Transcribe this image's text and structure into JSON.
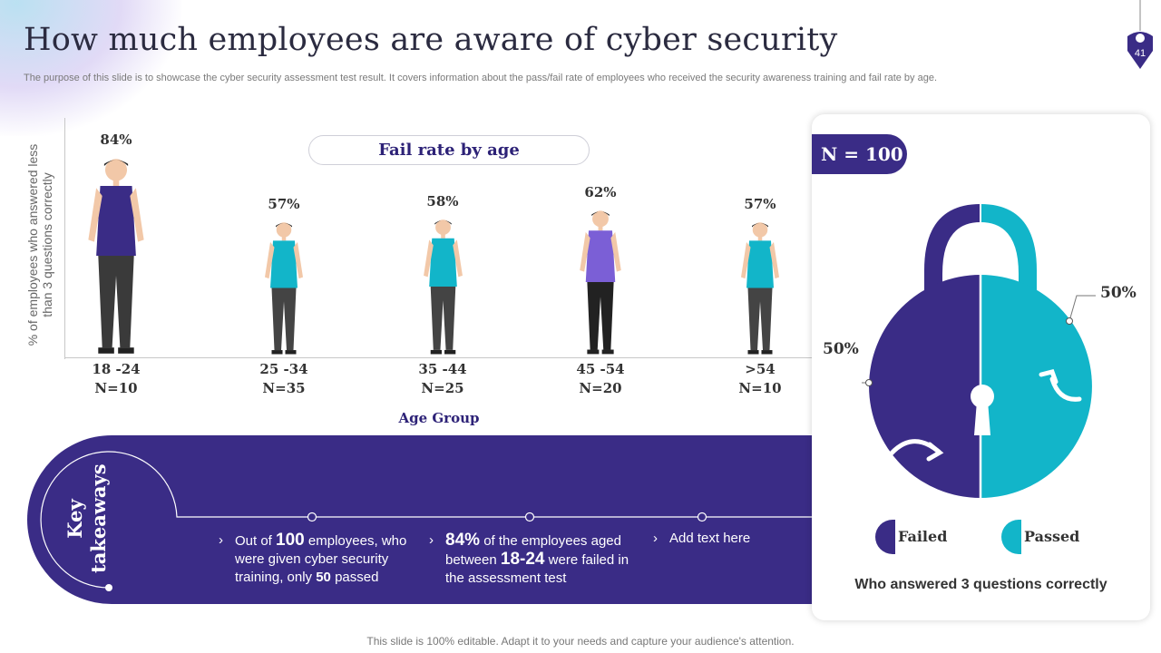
{
  "header": {
    "title": "How much employees are aware of cyber security",
    "subtitle": "The purpose of this slide is to showcase the cyber security assessment test result. It covers information about the pass/fail rate of employees who received the security awareness training and fail rate by age.",
    "page_number": "41"
  },
  "chart_data": [
    {
      "type": "bar",
      "title": "Fail rate by age",
      "xlabel": "Age Group",
      "ylabel": "% of employees who answered less than 3 questions correctly",
      "categories": [
        "18 -24",
        "25 -34",
        "35 -44",
        "45 -54",
        ">54"
      ],
      "sample_sizes": [
        "N=10",
        "N=35",
        "N=25",
        "N=20",
        "N=10"
      ],
      "values": [
        84,
        57,
        58,
        62,
        57
      ],
      "value_labels": [
        "84%",
        "57%",
        "58%",
        "62%",
        "57%"
      ]
    },
    {
      "type": "pie",
      "title": "N = 100",
      "caption": "Who answered 3 questions correctly",
      "categories": [
        "Failed",
        "Passed"
      ],
      "values": [
        50,
        50
      ],
      "value_labels": [
        "50%",
        "50%"
      ],
      "colors": [
        "#3a2c86",
        "#12b5c9"
      ]
    }
  ],
  "takeaways": {
    "label_line1": "Key",
    "label_line2": "takeaways",
    "item1": {
      "pre": "Out of ",
      "num1": "100",
      "mid": " employees, who were given cyber security training, only ",
      "num2": "50",
      "post": " passed"
    },
    "item2": {
      "num1": "84%",
      "mid": " of the employees aged between ",
      "num2": "18-24",
      "post": " were failed in the assessment test"
    },
    "item3": "Add text here"
  },
  "footer": "This slide is 100% editable. Adapt it to your needs and capture your audience's attention.",
  "colors": {
    "purple": "#3a2c86",
    "teal": "#12b5c9",
    "figure_purple": "#7b5fd6"
  }
}
